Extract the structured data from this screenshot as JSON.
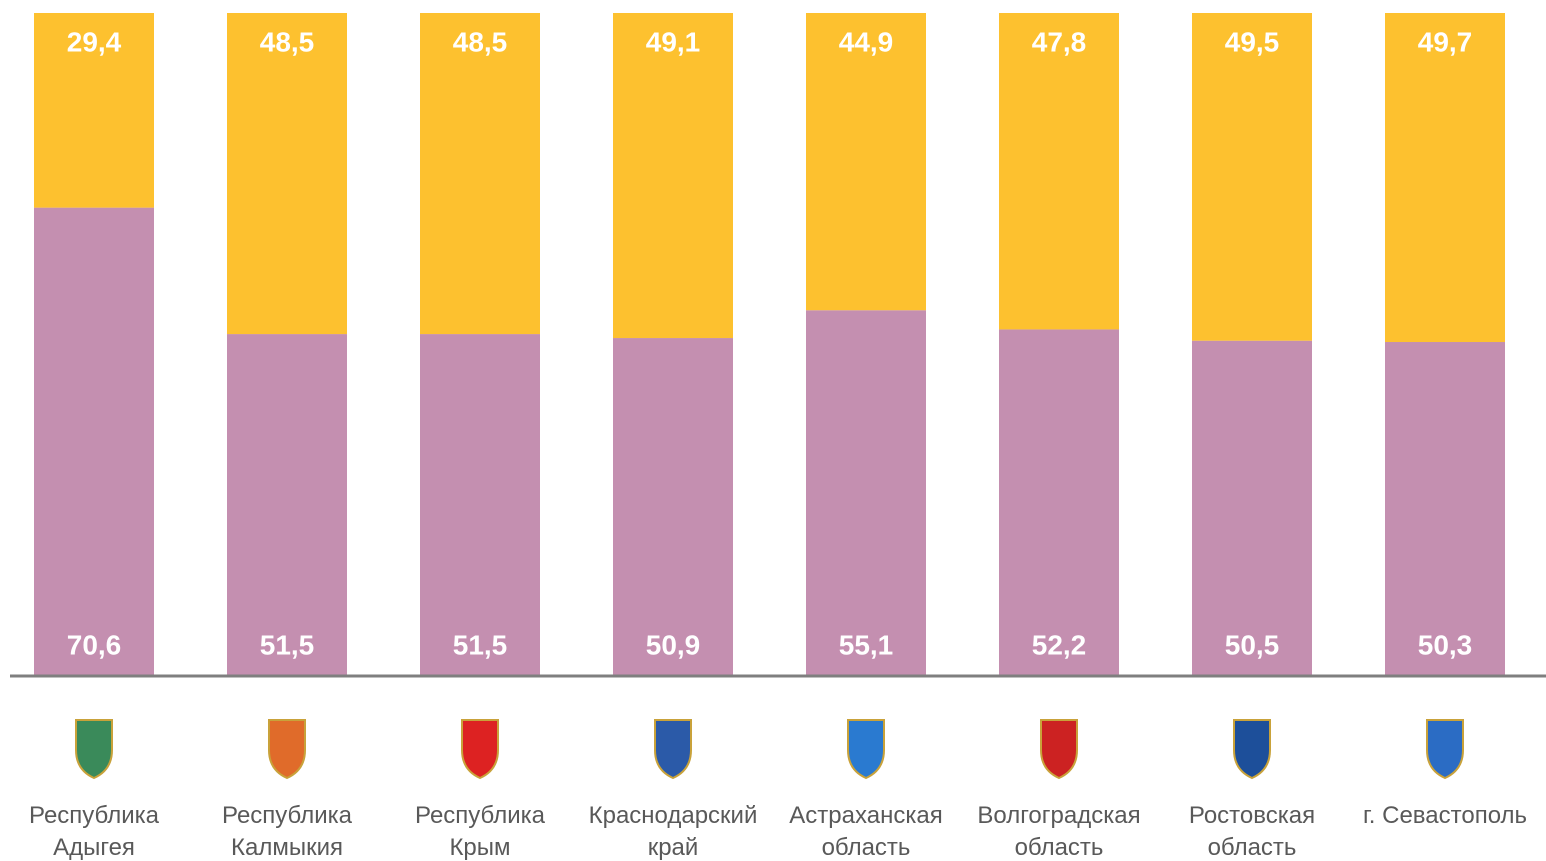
{
  "chart_data": {
    "type": "stacked-bar",
    "categories": [
      "Республика\nАдыгея",
      "Республика\nКалмыкия",
      "Республика\nКрым",
      "Краснодарский\nкрай",
      "Астраханская\nобласть",
      "Волгоградская\nобласть",
      "Ростовская\nобласть",
      "г. Севастополь"
    ],
    "ylim": [
      0,
      100
    ],
    "series": [
      {
        "color": "#c48fb0",
        "values": [
          70.6,
          51.5,
          51.5,
          50.9,
          55.1,
          52.2,
          50.5,
          50.3
        ],
        "value_labels": [
          "70,6",
          "51,5",
          "51,5",
          "50,9",
          "55,1",
          "52,2",
          "50,5",
          "50,3"
        ]
      },
      {
        "color": "#fdc12f",
        "values": [
          29.4,
          48.5,
          48.5,
          49.1,
          44.9,
          47.8,
          49.5,
          49.7
        ],
        "value_labels": [
          "29,4",
          "48,5",
          "48,5",
          "49,1",
          "44,9",
          "47,8",
          "49,5",
          "49,7"
        ]
      }
    ]
  }
}
